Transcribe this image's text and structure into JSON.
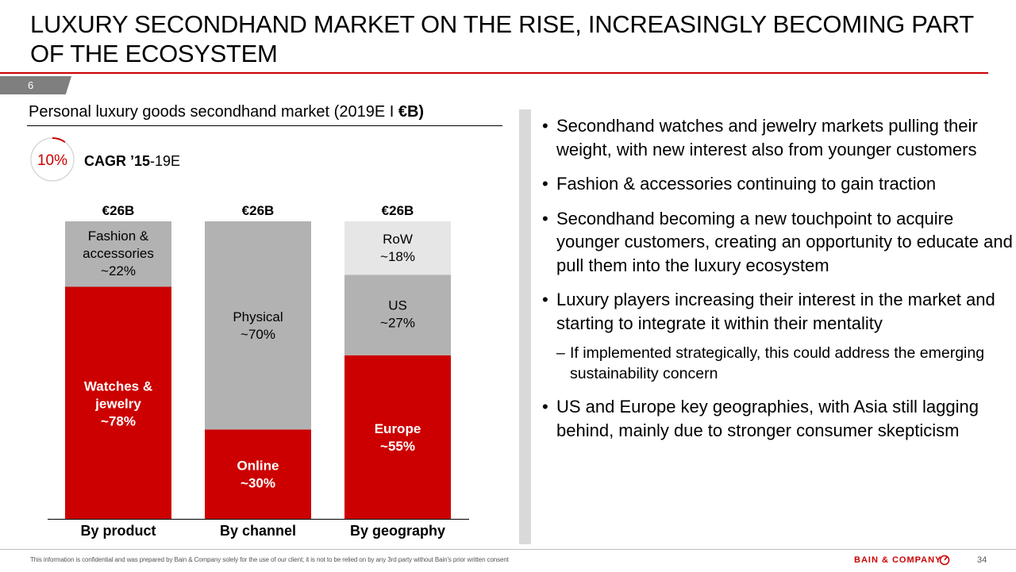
{
  "title": "LUXURY SECONDHAND MARKET ON THE RISE, INCREASINGLY BECOMING PART OF THE ECOSYSTEM",
  "page_tab": "6",
  "chart_heading": {
    "text": "Personal luxury goods secondhand market (2019E I ",
    "bold": "€B)"
  },
  "cagr": {
    "value": "10%",
    "label_bold": "CAGR ’15",
    "label_rest": "-19E",
    "ring_fraction": 0.1
  },
  "colors": {
    "red": "#cc0000",
    "gray": "#b2b2b2",
    "light_gray": "#e6e6e6",
    "divider": "#d9d9d9"
  },
  "chart_data": {
    "type": "bar",
    "stacked": true,
    "percent": true,
    "categories": [
      "By product",
      "By channel",
      "By geography"
    ],
    "totals": [
      "€26B",
      "€26B",
      "€26B"
    ],
    "bars": [
      {
        "category": "By product",
        "segments": [
          {
            "label": "Watches & jewelry",
            "pct_label": "~78%",
            "value": 78,
            "color": "red"
          },
          {
            "label": "Fashion & accessories",
            "pct_label": "~22%",
            "value": 22,
            "color": "gray"
          }
        ]
      },
      {
        "category": "By channel",
        "segments": [
          {
            "label": "Online",
            "pct_label": "~30%",
            "value": 30,
            "color": "red"
          },
          {
            "label": "Physical",
            "pct_label": "~70%",
            "value": 70,
            "color": "gray"
          }
        ]
      },
      {
        "category": "By geography",
        "segments": [
          {
            "label": "Europe",
            "pct_label": "~55%",
            "value": 55,
            "color": "red"
          },
          {
            "label": "US",
            "pct_label": "~27%",
            "value": 27,
            "color": "gray"
          },
          {
            "label": "RoW",
            "pct_label": "~18%",
            "value": 18,
            "color": "light_gray"
          }
        ]
      }
    ]
  },
  "bullets": [
    {
      "text": "Secondhand watches and jewelry markets pulling their weight, with new interest also from younger customers"
    },
    {
      "text": "Fashion & accessories continuing to gain traction"
    },
    {
      "text": "Secondhand becoming a new touchpoint to acquire younger customers, creating an opportunity to educate and pull them into the luxury ecosystem"
    },
    {
      "text": "Luxury players increasing their interest in the market and starting to integrate it within their mentality"
    },
    {
      "text": "US and Europe key geographies, with Asia still lagging behind, mainly due to stronger consumer skepticism"
    }
  ],
  "sub_bullet": "If implemented strategically, this could address the emerging sustainability concern",
  "footer": {
    "note": "This information is confidential and was prepared by Bain & Company solely for the use of our client; it is not to be relied on by any 3rd party without Bain's prior written consent",
    "brand": "BAIN & COMPANY",
    "page": "34"
  }
}
